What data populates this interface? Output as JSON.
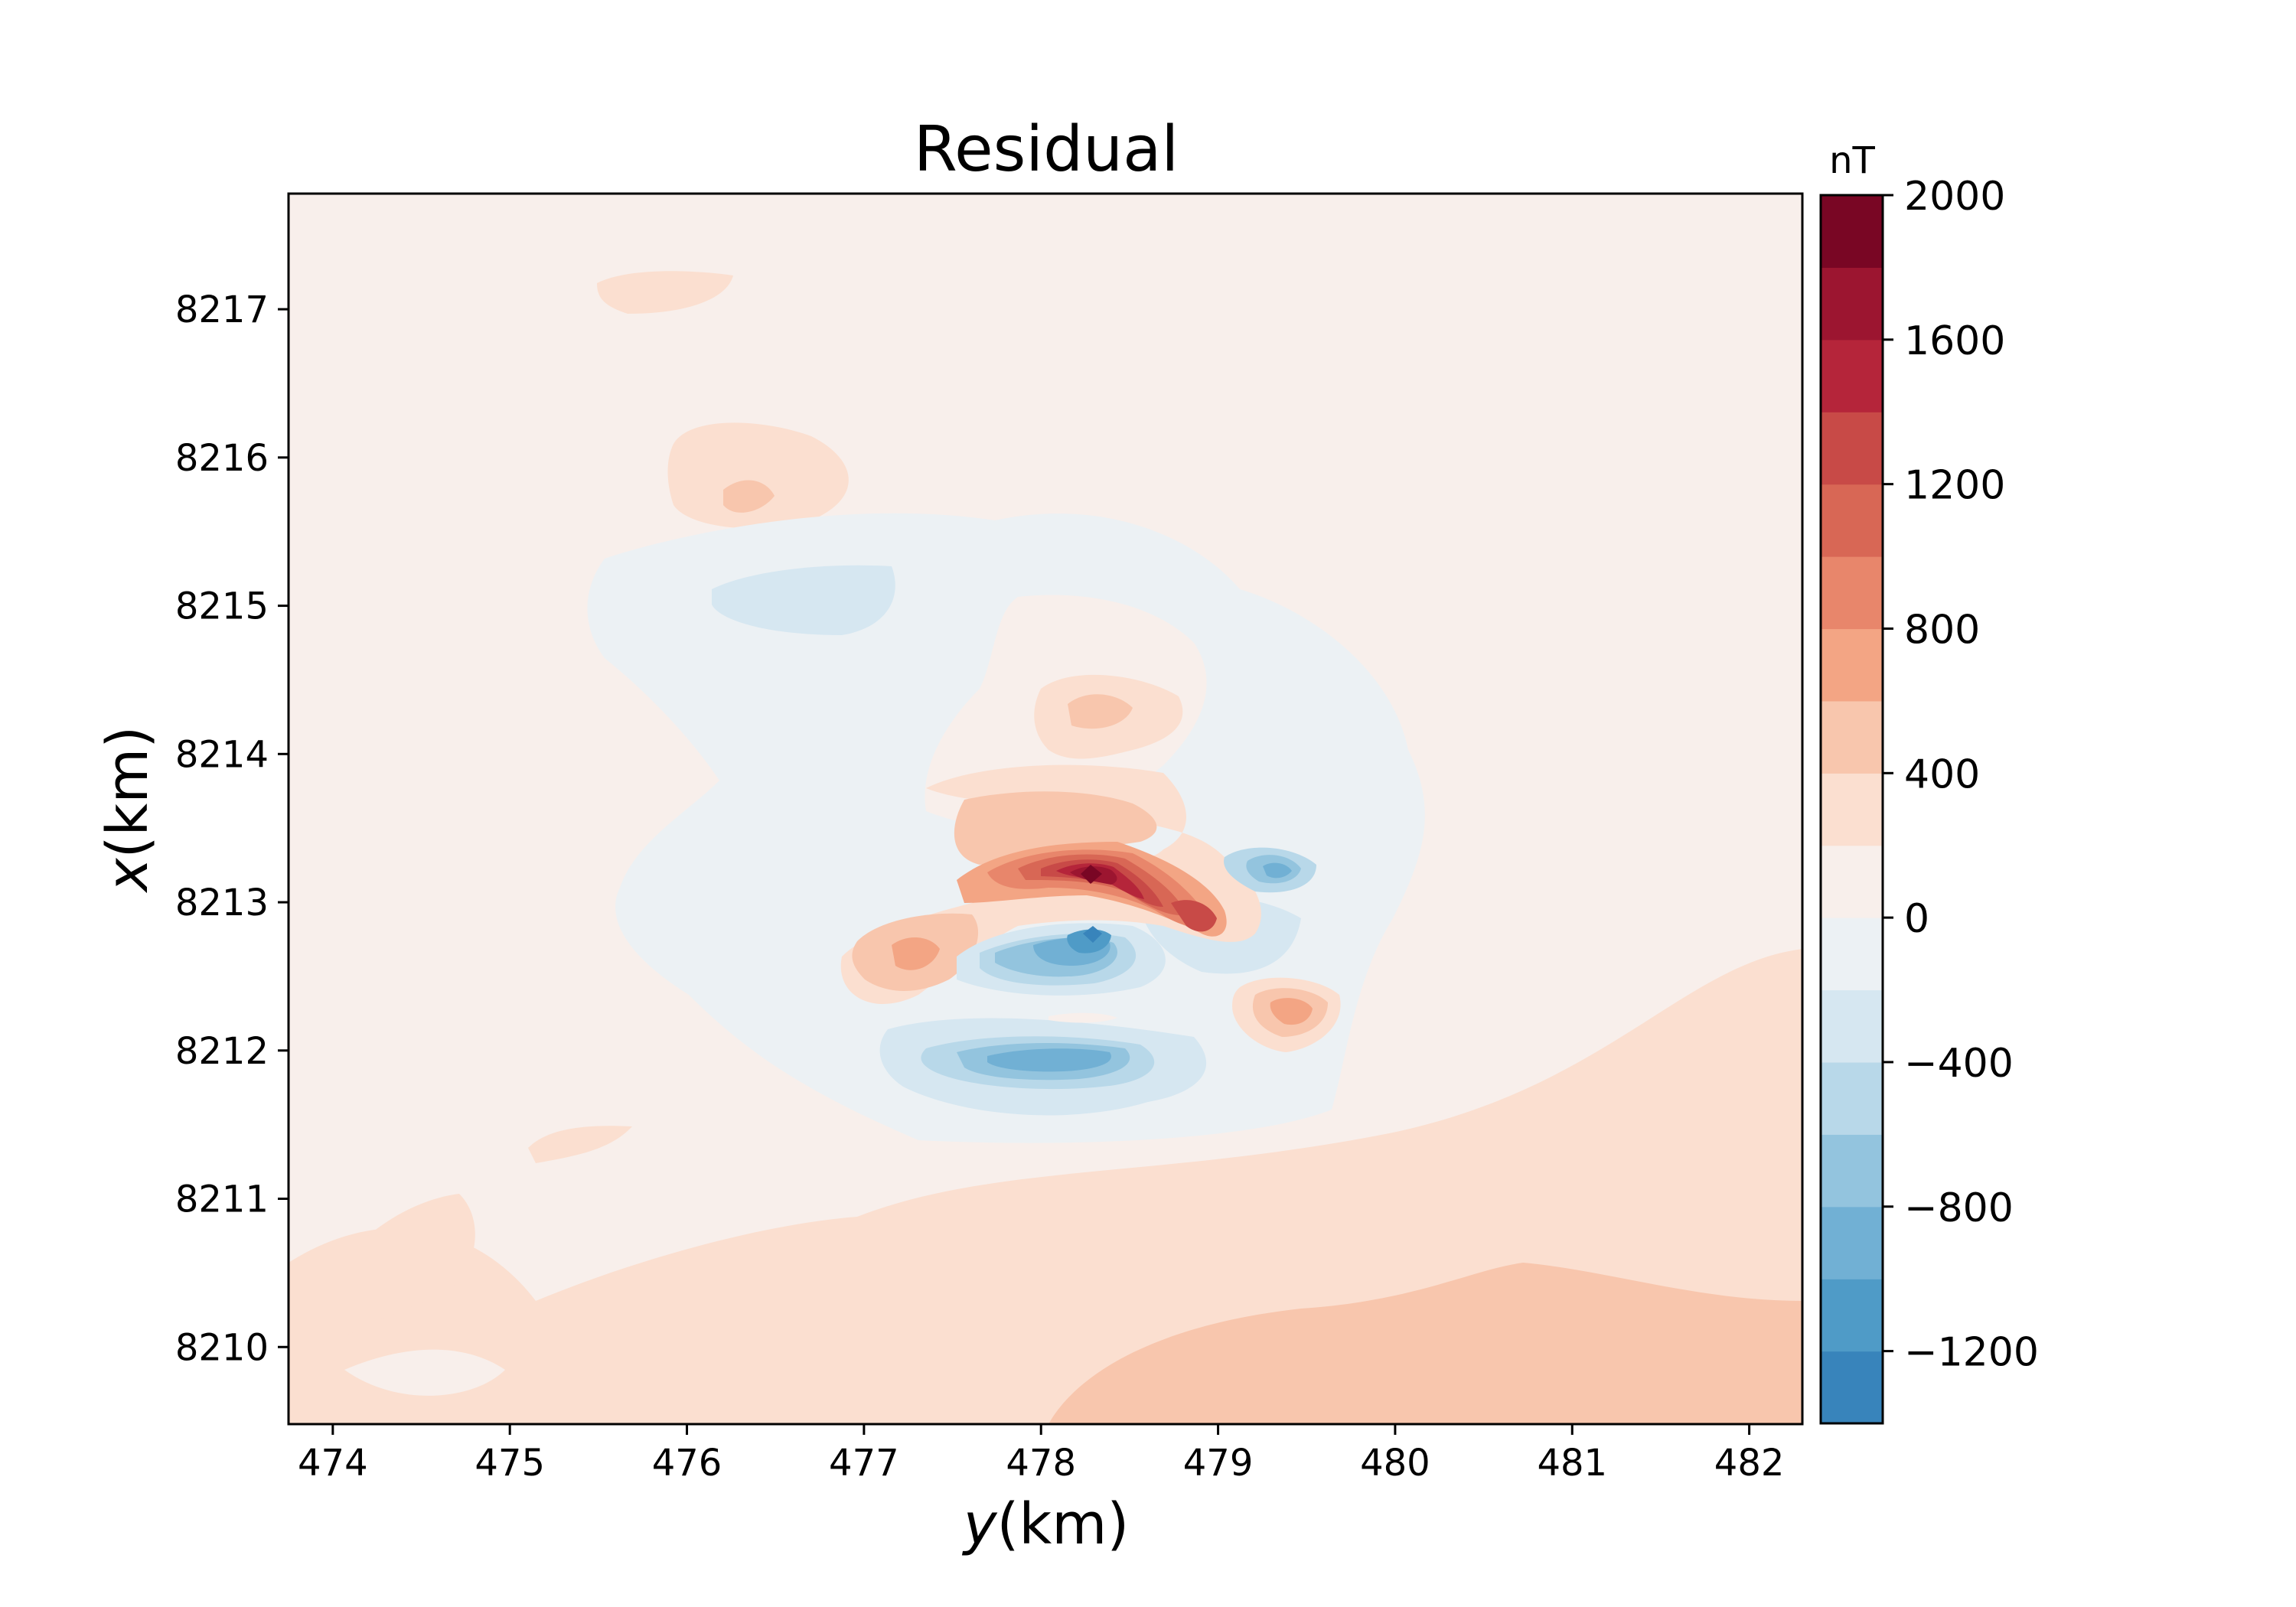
{
  "chart_data": {
    "type": "heatmap",
    "subtype": "filled-contour",
    "title": "Residual",
    "xlabel_italic": "y",
    "xlabel_rest": "(km)",
    "ylabel_italic": "x",
    "ylabel_rest": "(km)",
    "xlim": [
      473.75,
      482.3
    ],
    "ylim": [
      8209.48,
      8217.78
    ],
    "xticks": [
      474,
      475,
      476,
      477,
      478,
      479,
      480,
      481,
      482
    ],
    "yticks": [
      8210,
      8211,
      8212,
      8213,
      8214,
      8215,
      8216,
      8217
    ],
    "colorbar": {
      "label": "nT",
      "range": [
        -1400,
        2000
      ],
      "ticks": [
        2000,
        1600,
        1200,
        800,
        400,
        0,
        -400,
        -800,
        -1200
      ],
      "tick_labels": [
        "2000",
        "1600",
        "1200",
        "800",
        "400",
        "0",
        "−400",
        "−800",
        "−1200"
      ],
      "levels": [
        {
          "from": -1400,
          "to": -1200,
          "color": "#3884bb"
        },
        {
          "from": -1200,
          "to": -1000,
          "color": "#4f9bc7"
        },
        {
          "from": -1000,
          "to": -800,
          "color": "#71b0d4"
        },
        {
          "from": -800,
          "to": -600,
          "color": "#93c4de"
        },
        {
          "from": -600,
          "to": -400,
          "color": "#b8d8e9"
        },
        {
          "from": -400,
          "to": -200,
          "color": "#d6e7f1"
        },
        {
          "from": -200,
          "to": 0,
          "color": "#ecf1f4"
        },
        {
          "from": 0,
          "to": 200,
          "color": "#f8efeb"
        },
        {
          "from": 200,
          "to": 400,
          "color": "#fbdfd0"
        },
        {
          "from": 400,
          "to": 600,
          "color": "#f8c6ad"
        },
        {
          "from": 600,
          "to": 800,
          "color": "#f3a584"
        },
        {
          "from": 800,
          "to": 1000,
          "color": "#e8866b"
        },
        {
          "from": 1000,
          "to": 1200,
          "color": "#d86755"
        },
        {
          "from": 1200,
          "to": 1400,
          "color": "#c84a47"
        },
        {
          "from": 1400,
          "to": 1600,
          "color": "#b5253a"
        },
        {
          "from": 1600,
          "to": 1800,
          "color": "#9c1530"
        },
        {
          "from": 1800,
          "to": 2000,
          "color": "#790624"
        }
      ]
    },
    "background_level": "0 to 200",
    "regions": [
      {
        "level": "200 to 400",
        "center": [
          482.0,
          8211.2
        ],
        "note": "broad positive band, south-east"
      },
      {
        "level": "400 to 600",
        "center": [
          480.0,
          8210.1
        ],
        "note": "south-east lobe"
      },
      {
        "level": "-200 to 0",
        "center": [
          478.0,
          8213.5
        ],
        "note": "negative halo around anomaly"
      },
      {
        "level": "-400 to -200",
        "center": [
          476.1,
          8215.07
        ]
      },
      {
        "level": "1800 to 2000",
        "center": [
          478.3,
          8213.13
        ],
        "note": "positive peak"
      },
      {
        "level": "-1400 to -1200",
        "center": [
          478.3,
          8212.8
        ],
        "note": "negative peak"
      },
      {
        "level": "-1000 to -800",
        "center": [
          478.0,
          8211.9
        ],
        "note": "southern negative lobe"
      },
      {
        "level": "-600 to -400",
        "center": [
          479.3,
          8213.2
        ]
      },
      {
        "level": "600 to 800",
        "center": [
          479.35,
          8212.25
        ]
      },
      {
        "level": "600 to 800",
        "center": [
          477.3,
          8212.6
        ]
      },
      {
        "level": "400 to 600",
        "center": [
          478.3,
          8214.28
        ]
      },
      {
        "level": "400 to 600",
        "center": [
          476.3,
          8215.72
        ]
      }
    ]
  }
}
